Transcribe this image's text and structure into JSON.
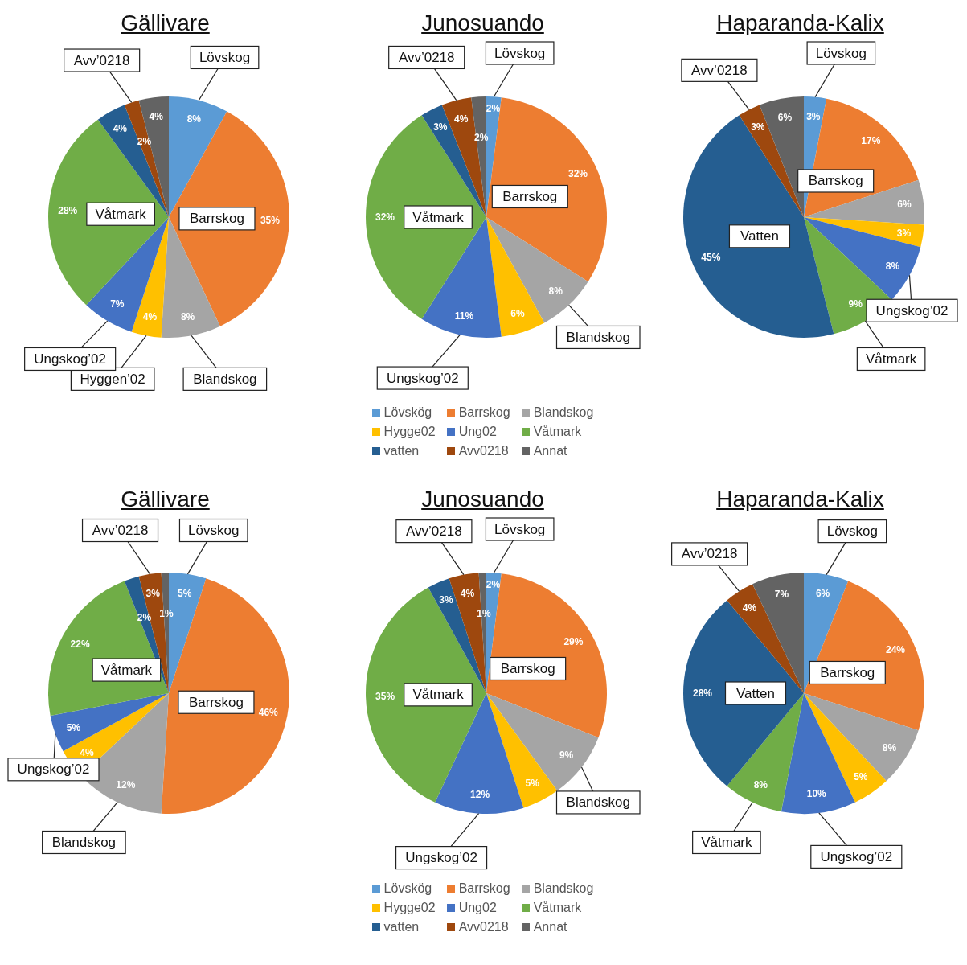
{
  "chart_data": [
    {
      "type": "pie",
      "title": "Gällivare",
      "categories": [
        "Lövskog",
        "Barrskog",
        "Blandskog",
        "Hyggen’02",
        "Ungskog’02",
        "Våtmark",
        null,
        "Avv’0218",
        null
      ],
      "values": [
        8,
        35,
        8,
        4,
        7,
        28,
        4,
        2,
        4
      ],
      "value_labels": [
        "8%",
        "35%",
        "8%",
        "4%",
        "7%",
        "28%",
        "4%",
        "2%",
        "4%"
      ],
      "colors": [
        "#5b9bd5",
        "#ed7d31",
        "#a5a5a5",
        "#ffc000",
        "#4472c4",
        "#70ad47",
        "#255e91",
        "#9e480e",
        "#636363"
      ],
      "legend": false
    },
    {
      "type": "pie",
      "title": "Junosuando",
      "categories": [
        "Lövskög",
        "Barrskog",
        "Blandskog",
        "Hygge02",
        "Ung02",
        "Våtmark",
        "vatten",
        "Avv0218",
        "Annat"
      ],
      "values": [
        2,
        32,
        8,
        6,
        11,
        32,
        3,
        4,
        2
      ],
      "value_labels": [
        "2%",
        "32%",
        "8%",
        "6%",
        "11%",
        "32%",
        "3%",
        "4%",
        "2%"
      ],
      "colors": [
        "#5b9bd5",
        "#ed7d31",
        "#a5a5a5",
        "#ffc000",
        "#4472c4",
        "#70ad47",
        "#255e91",
        "#9e480e",
        "#636363"
      ],
      "legend": "bottom",
      "annotations": [
        {
          "text": "Lövskog",
          "x": "Lövskög"
        },
        {
          "text": "Barrskog",
          "x": "Barrskog"
        },
        {
          "text": "Blandskog",
          "x": "Blandskog"
        },
        {
          "text": "Ungskog’02",
          "x": "Ung02"
        },
        {
          "text": "Våtmark",
          "x": "Våtmark"
        },
        {
          "text": "Avv’0218",
          "x": "Avv0218"
        }
      ]
    },
    {
      "type": "pie",
      "title": "Haparanda-Kalix",
      "categories": [
        "Lövskog",
        "Barrskog",
        null,
        null,
        "Ungskog’02",
        "Våtmark",
        "Vatten",
        "Avv’0218",
        null
      ],
      "values": [
        3,
        17,
        6,
        3,
        8,
        9,
        45,
        3,
        6
      ],
      "value_labels": [
        "3%",
        "17%",
        "6%",
        "3%",
        "8%",
        "9%",
        "45%",
        "3%",
        "6%"
      ],
      "colors": [
        "#5b9bd5",
        "#ed7d31",
        "#a5a5a5",
        "#ffc000",
        "#4472c4",
        "#70ad47",
        "#255e91",
        "#9e480e",
        "#636363"
      ],
      "legend": false
    },
    {
      "type": "pie",
      "title": "Gällivare",
      "categories": [
        "Lövskog",
        "Barrskog",
        "Blandskog",
        null,
        "Ungskog’02",
        "Våtmark",
        null,
        "Avv’0218",
        null
      ],
      "values": [
        5,
        46,
        12,
        4,
        5,
        22,
        2,
        3,
        1
      ],
      "value_labels": [
        "5%",
        "46%",
        "12%",
        "4%",
        "5%",
        "22%",
        "2%",
        "3%",
        "1%"
      ],
      "colors": [
        "#5b9bd5",
        "#ed7d31",
        "#a5a5a5",
        "#ffc000",
        "#4472c4",
        "#70ad47",
        "#255e91",
        "#9e480e",
        "#636363"
      ],
      "legend": false
    },
    {
      "type": "pie",
      "title": "Junosuando",
      "categories": [
        "Lövskög",
        "Barrskog",
        "Blandskog",
        "Hygge02",
        "Ung02",
        "Våtmark",
        "vatten",
        "Avv0218",
        "Annat"
      ],
      "values": [
        2,
        29,
        9,
        5,
        12,
        35,
        3,
        4,
        1
      ],
      "value_labels": [
        "2%",
        "29%",
        "9%",
        "5%",
        "12%",
        "35%",
        "3%",
        "4%",
        "1%"
      ],
      "colors": [
        "#5b9bd5",
        "#ed7d31",
        "#a5a5a5",
        "#ffc000",
        "#4472c4",
        "#70ad47",
        "#255e91",
        "#9e480e",
        "#636363"
      ],
      "legend": "bottom",
      "annotations": [
        {
          "text": "Lövskog",
          "x": "Lövskög"
        },
        {
          "text": "Barrskog",
          "x": "Barrskog"
        },
        {
          "text": "Blandskog",
          "x": "Blandskog"
        },
        {
          "text": "Ungskog’02",
          "x": "Ung02"
        },
        {
          "text": "Våtmark",
          "x": "Våtmark"
        },
        {
          "text": "Avv’0218",
          "x": "Avv0218"
        }
      ]
    },
    {
      "type": "pie",
      "title": "Haparanda-Kalix",
      "categories": [
        "Lövskog",
        "Barrskog",
        null,
        null,
        "Ungskog’02",
        "Våtmark",
        "Vatten",
        "Avv’0218",
        null
      ],
      "values": [
        6,
        24,
        8,
        5,
        10,
        8,
        28,
        4,
        7
      ],
      "value_labels": [
        "6%",
        "24%",
        "8%",
        "5%",
        "10%",
        "8%",
        "28%",
        "4%",
        "7%"
      ],
      "colors": [
        "#5b9bd5",
        "#ed7d31",
        "#a5a5a5",
        "#ffc000",
        "#4472c4",
        "#70ad47",
        "#255e91",
        "#9e480e",
        "#636363"
      ],
      "legend": false
    }
  ]
}
